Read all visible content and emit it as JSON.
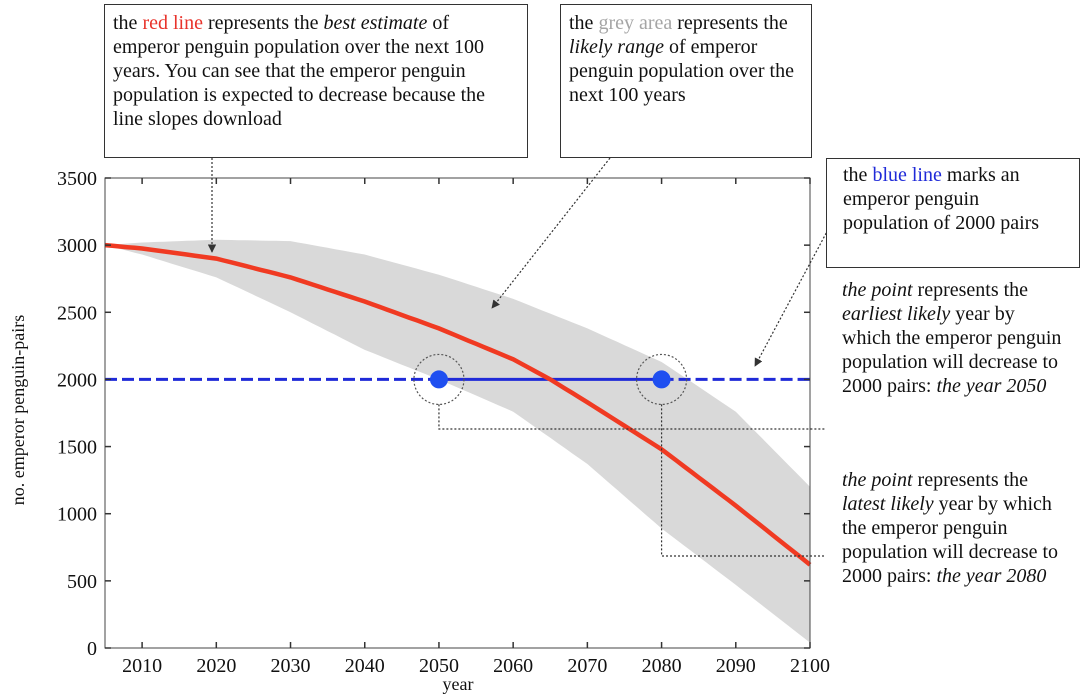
{
  "chart_data": {
    "type": "line",
    "xlabel": "year",
    "ylabel": "no. emperor penguin-pairs",
    "xlim": [
      2005,
      2100
    ],
    "ylim": [
      0,
      3500
    ],
    "x_ticks": [
      2010,
      2020,
      2030,
      2040,
      2050,
      2060,
      2070,
      2080,
      2090,
      2100
    ],
    "y_ticks": [
      0,
      500,
      1000,
      1500,
      2000,
      2500,
      3000,
      3500
    ],
    "grid": false,
    "series": [
      {
        "kind": "line",
        "color": "#f03a22",
        "x": [
          2005,
          2010,
          2020,
          2030,
          2040,
          2050,
          2060,
          2065,
          2070,
          2080,
          2090,
          2100
        ],
        "y": [
          3000,
          2975,
          2900,
          2760,
          2580,
          2380,
          2150,
          2000,
          1830,
          1480,
          1060,
          620
        ]
      },
      {
        "kind": "band",
        "color": "#d9d9d9",
        "x": [
          2005,
          2010,
          2020,
          2030,
          2040,
          2050,
          2060,
          2070,
          2080,
          2090,
          2100
        ],
        "upper": [
          3000,
          3020,
          3040,
          3030,
          2930,
          2780,
          2600,
          2380,
          2130,
          1760,
          1200
        ],
        "lower": [
          3000,
          2930,
          2760,
          2500,
          2220,
          2000,
          1760,
          1370,
          890,
          470,
          40
        ]
      },
      {
        "kind": "hline",
        "color": "#1f2ad8",
        "y": 2000,
        "solid_x": [
          2050,
          2080
        ]
      }
    ],
    "points": [
      {
        "x": 2050,
        "y": 2000,
        "color": "#1f4ff0"
      },
      {
        "x": 2080,
        "y": 2000,
        "color": "#1f4ff0"
      }
    ]
  },
  "annotations": {
    "red_line": {
      "p1": "the ",
      "hl": "red line",
      "p2": " represents the ",
      "em": "best estimate",
      "p3": " of emperor penguin population over the next 100 years. You can see that the emperor penguin population is expected to decrease because the line slopes download"
    },
    "grey_area": {
      "p1": "the ",
      "hl": "grey area",
      "p2": " represents the ",
      "em": "likely range",
      "p3": " of emperor penguin population over the next 100 years"
    },
    "blue_line": {
      "p1": "the ",
      "hl": "blue line",
      "p2": " marks an emperor penguin population of 2000 pairs"
    },
    "earliest": {
      "em1": "the point",
      "p1": " represents the ",
      "em2": "earliest likely",
      "p2": " year by which the emperor penguin population will decrease to 2000 pairs: ",
      "em3": "the year 2050"
    },
    "latest": {
      "em1": "the point",
      "p1": " represents the ",
      "em2": "latest likely",
      "p2": " year by which the emperor penguin population will decrease to 2000 pairs: ",
      "em3": "the year 2080"
    }
  }
}
